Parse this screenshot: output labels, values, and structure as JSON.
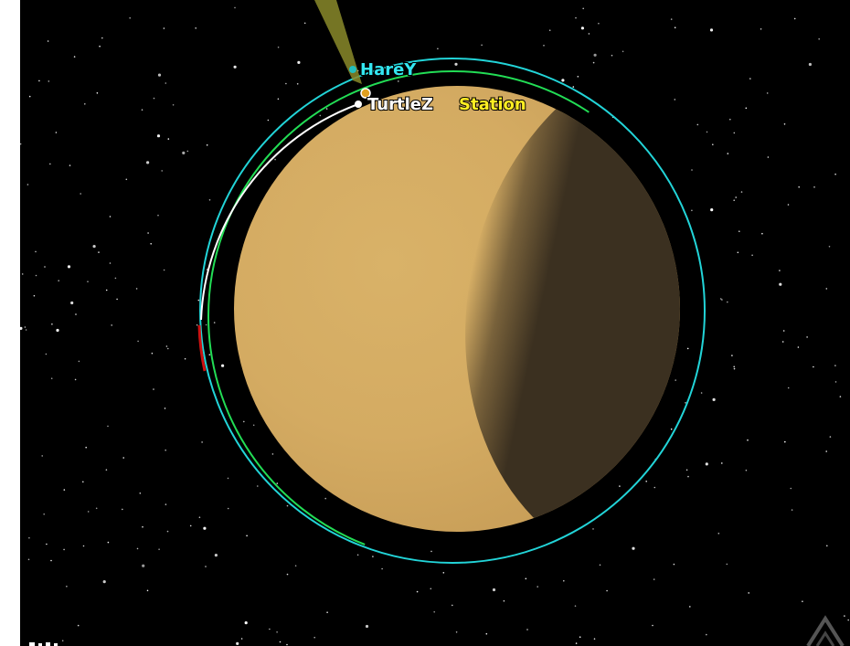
{
  "view": {
    "background_color": "#000000",
    "planet": {
      "name_icon": "planet-icon",
      "lit_color": "#d9b268",
      "dark_color": "#3b3020"
    },
    "orbits": [
      {
        "id": "hare",
        "color": "#22d4d8"
      },
      {
        "id": "green",
        "color": "#22dd55"
      },
      {
        "id": "turtle",
        "color": "#ffffff"
      },
      {
        "id": "red-segment",
        "color": "#cc1111"
      }
    ],
    "beam_color": "#8a8a2a"
  },
  "vessels": {
    "hare": {
      "label": "HareY",
      "color": "#33e6f0"
    },
    "turtle": {
      "label": "TurtleZ",
      "color": "#ffffff"
    },
    "station": {
      "label": "Station",
      "color": "#ffee22"
    }
  },
  "navigation": {
    "corner_icon": "chevron-up-icon"
  }
}
